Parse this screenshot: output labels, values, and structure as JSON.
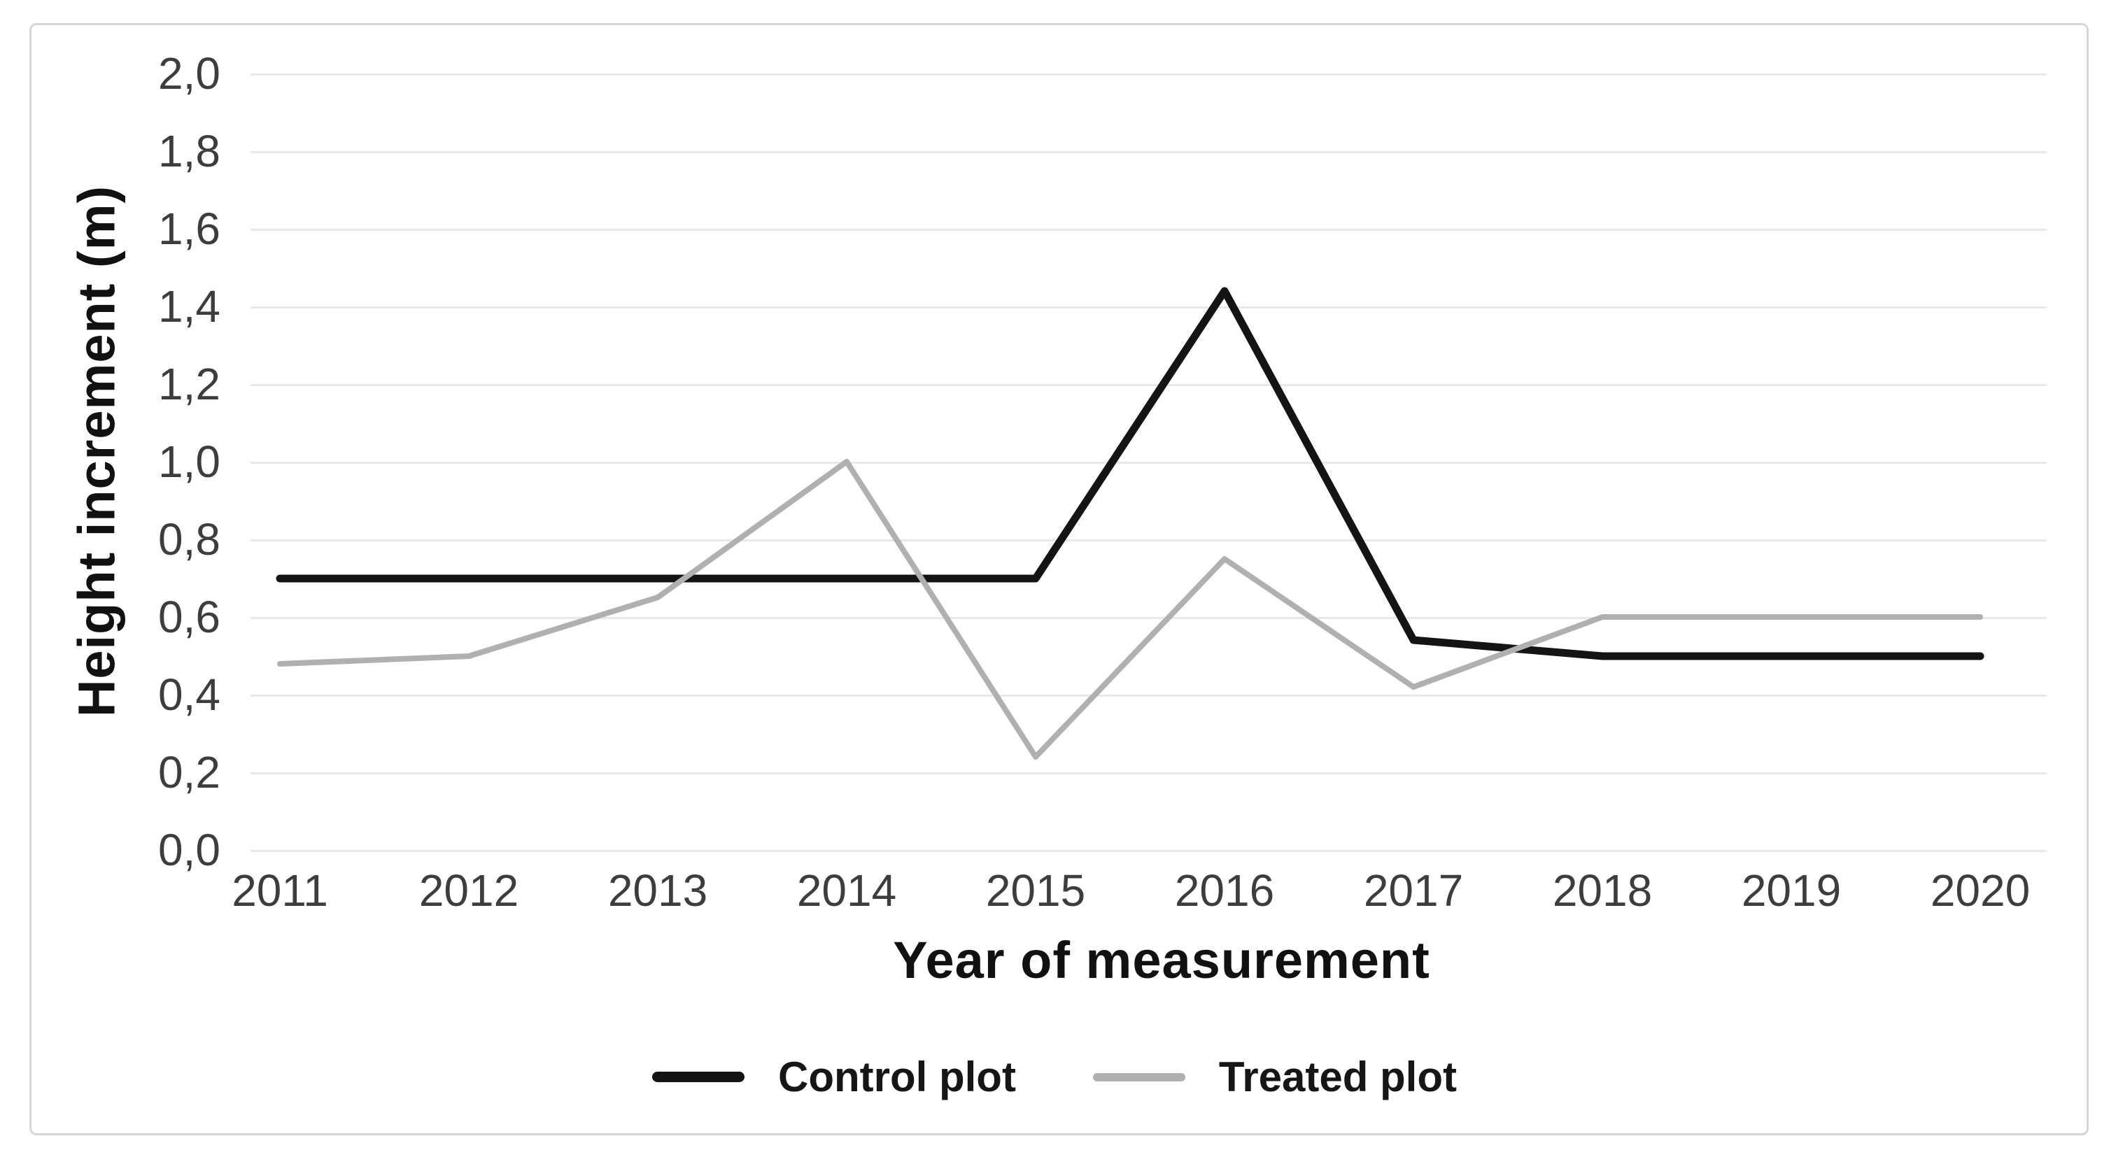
{
  "chart_data": {
    "type": "line",
    "title": "",
    "xlabel": "Year of measurement",
    "ylabel": "Height increment (m)",
    "categories": [
      "2011",
      "2012",
      "2013",
      "2014",
      "2015",
      "2016",
      "2017",
      "2018",
      "2019",
      "2020"
    ],
    "series": [
      {
        "name": "Control plot",
        "color": "#141414",
        "stroke_width": 11,
        "values": [
          0.7,
          0.7,
          0.7,
          0.7,
          0.7,
          1.44,
          0.54,
          0.5,
          0.5,
          0.5
        ]
      },
      {
        "name": "Treated plot",
        "color": "#b0b0b0",
        "stroke_width": 8,
        "values": [
          0.48,
          0.5,
          0.65,
          1.0,
          0.24,
          0.75,
          0.42,
          0.6,
          0.6,
          0.6
        ]
      }
    ],
    "ylim": [
      0.0,
      2.0
    ],
    "ytick_step": 0.2,
    "ytick_labels": [
      "2,0",
      "1,8",
      "1,6",
      "1,4",
      "1,2",
      "1,0",
      "0,8",
      "0,6",
      "0,4",
      "0,2",
      "0,0"
    ],
    "decimal_separator": ",",
    "grid": "horizontal-only",
    "gridline_color": "#e8e8e8",
    "legend_position": "bottom-center"
  },
  "colors": {
    "background": "#ffffff",
    "border": "#d6d6d6",
    "tick_text": "#3d3d3d",
    "title_text": "#111111"
  }
}
